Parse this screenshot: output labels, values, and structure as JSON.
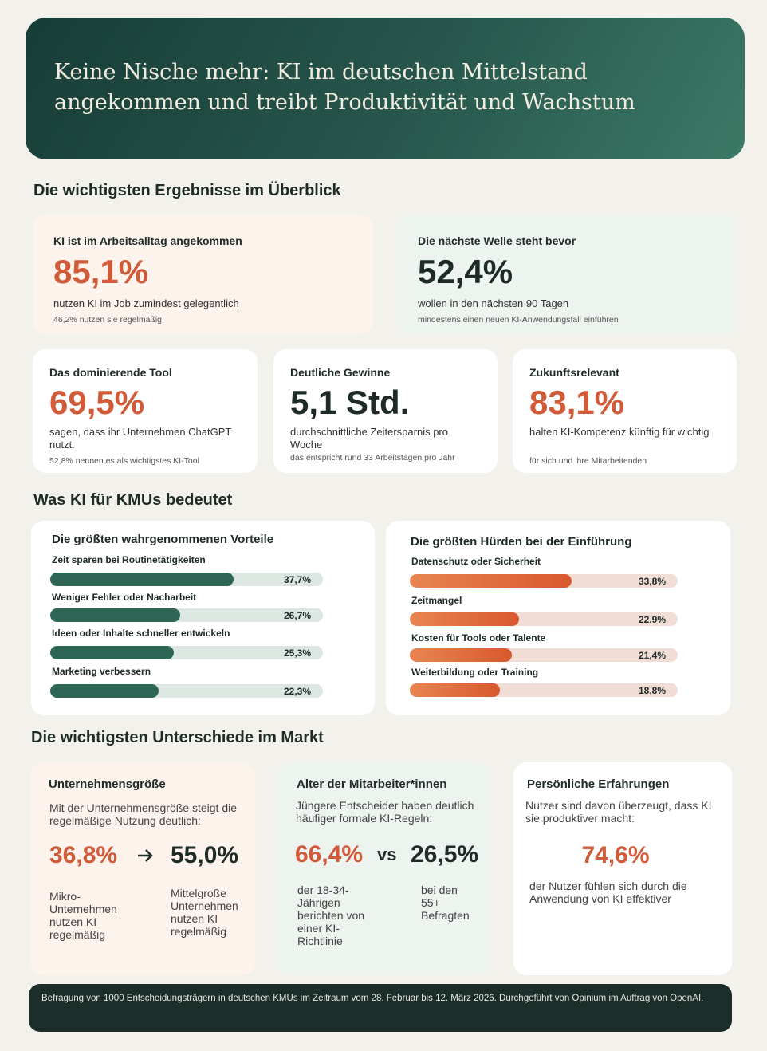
{
  "header": {
    "title": "Keine Nische mehr: KI im deutschen Mittelstand angekommen und treibt Produktivität und Wachstum"
  },
  "overview": {
    "heading": "Die wichtigsten Ergebnisse im Überblick",
    "cards": [
      {
        "title": "KI ist im Arbeitsalltag angekommen",
        "value": "85,1%",
        "text": "nutzen KI im Job zumindest gelegentlich",
        "note": "46,2% nutzen sie regelmäßig"
      },
      {
        "title": "Die nächste Welle steht bevor",
        "value": "52,4%",
        "text": "wollen in den nächsten 90 Tagen",
        "note": "mindestens einen neuen KI-Anwendungsfall einführen"
      },
      {
        "title": "Das dominierende Tool",
        "value": "69,5%",
        "text": "sagen, dass ihr Unternehmen ChatGPT nutzt.",
        "note": "52,8% nennen es als wichtigstes KI-Tool"
      },
      {
        "title": "Deutliche Gewinne",
        "value": "5,1 Std.",
        "text": "durchschnittliche Zeitersparnis pro Woche",
        "note": "das entspricht rund 33 Arbeitstagen pro Jahr"
      },
      {
        "title": "Zukunftsrelevant",
        "value": "83,1%",
        "text": "halten KI-Kompetenz künftig für wichtig",
        "note": "für sich und ihre Mitarbeitenden"
      }
    ]
  },
  "meaning": {
    "heading": "Was KI für KMUs bedeutet",
    "benefits": {
      "title": "Die größten wahrgenommenen Vorteile",
      "xlim": [
        0,
        56
      ],
      "items": [
        {
          "label": "Zeit sparen bei Routinetätigkeiten",
          "value": 37.7,
          "value_label": "37,7%"
        },
        {
          "label": "Weniger Fehler oder Nacharbeit",
          "value": 26.7,
          "value_label": "26,7%"
        },
        {
          "label": "Ideen oder Inhalte schneller entwickeln",
          "value": 25.3,
          "value_label": "25,3%"
        },
        {
          "label": "Marketing verbessern",
          "value": 22.3,
          "value_label": "22,3%"
        }
      ]
    },
    "barriers": {
      "title": "Die größten Hürden bei der Einführung",
      "xlim": [
        0,
        56
      ],
      "items": [
        {
          "label": "Datenschutz oder Sicherheit",
          "value": 33.8,
          "value_label": "33,8%"
        },
        {
          "label": "Zeitmangel",
          "value": 22.9,
          "value_label": "22,9%"
        },
        {
          "label": "Kosten für Tools oder Talente",
          "value": 21.4,
          "value_label": "21,4%"
        },
        {
          "label": "Weiterbildung oder Training",
          "value": 18.8,
          "value_label": "18,8%"
        }
      ]
    }
  },
  "differences": {
    "heading": "Die wichtigsten Unterschiede im Markt",
    "size": {
      "title": "Unternehmensgröße",
      "text": "Mit der Unternehmensgröße steigt die regelmäßige Nutzung deutlich:",
      "left_value": "36,8%",
      "right_value": "55,0%",
      "left_caption": "Mikro-Unternehmen nutzen KI regelmäßig",
      "right_caption": "Mittelgroße Unternehmen nutzen KI regelmäßig"
    },
    "age": {
      "title": "Alter der Mitarbeiter*innen",
      "text": "Jüngere Entscheider haben deutlich häufiger formale KI-Regeln:",
      "left_value": "66,4%",
      "separator": "vs",
      "right_value": "26,5%",
      "left_caption": "der 18-34-Jährigen berichten von einer KI-Richtlinie",
      "right_caption": "bei den 55+ Befragten"
    },
    "experience": {
      "title": "Persönliche Erfahrungen",
      "text": "Nutzer sind davon überzeugt, dass KI sie produktiver macht:",
      "value": "74,6%",
      "caption": "der Nutzer fühlen sich durch die Anwendung von KI effektiver"
    }
  },
  "footer": {
    "text": "Befragung von 1000 Entscheidungsträgern in deutschen KMUs im Zeitraum vom 28. Februar bis 12. März 2026. Durchgeführt von Opinium im Auftrag von OpenAI."
  }
}
